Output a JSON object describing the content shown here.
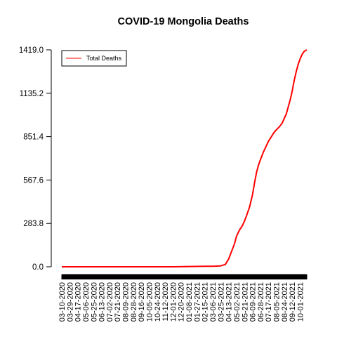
{
  "chart_data": {
    "type": "line",
    "title": "COVID-19 Mongolia Deaths",
    "xlabel": "",
    "ylabel": "",
    "ylim": [
      0,
      1419
    ],
    "yticks": [
      "0.0",
      "283.8",
      "567.6",
      "851.4",
      "1135.2",
      "1419.0"
    ],
    "ytick_values": [
      0,
      283.8,
      567.6,
      851.4,
      1135.2,
      1419.0
    ],
    "x_start": "2020-03-10",
    "x_end": "2021-10-17",
    "xtick_labels": [
      "03-10-2020",
      "03-29-2020",
      "04-17-2020",
      "05-06-2020",
      "05-25-2020",
      "06-13-2020",
      "07-02-2020",
      "07-21-2020",
      "08-09-2020",
      "08-28-2020",
      "09-16-2020",
      "10-05-2020",
      "10-24-2020",
      "11-12-2020",
      "12-01-2020",
      "12-20-2020",
      "01-08-2021",
      "01-27-2021",
      "02-15-2021",
      "03-06-2021",
      "03-25-2021",
      "04-13-2021",
      "05-02-2021",
      "05-21-2021",
      "06-09-2021",
      "06-28-2021",
      "07-17-2021",
      "08-05-2021",
      "08-24-2021",
      "09-12-2021",
      "10-01-2021"
    ],
    "legend": {
      "position": "top-left",
      "entries": [
        "Total Deaths"
      ]
    },
    "grid": false,
    "series": [
      {
        "name": "Total Deaths",
        "color": "#ff0000",
        "points": [
          [
            "2020-03-10",
            0
          ],
          [
            "2020-12-01",
            0
          ],
          [
            "2021-01-08",
            2
          ],
          [
            "2021-02-15",
            3
          ],
          [
            "2021-03-06",
            3
          ],
          [
            "2021-03-25",
            6
          ],
          [
            "2021-04-05",
            15
          ],
          [
            "2021-04-13",
            50
          ],
          [
            "2021-04-20",
            100
          ],
          [
            "2021-04-27",
            150
          ],
          [
            "2021-05-02",
            200
          ],
          [
            "2021-05-09",
            240
          ],
          [
            "2021-05-16",
            270
          ],
          [
            "2021-05-21",
            300
          ],
          [
            "2021-05-26",
            335
          ],
          [
            "2021-06-02",
            390
          ],
          [
            "2021-06-09",
            470
          ],
          [
            "2021-06-14",
            550
          ],
          [
            "2021-06-19",
            620
          ],
          [
            "2021-06-24",
            670
          ],
          [
            "2021-06-28",
            700
          ],
          [
            "2021-07-05",
            750
          ],
          [
            "2021-07-12",
            790
          ],
          [
            "2021-07-17",
            820
          ],
          [
            "2021-07-24",
            850
          ],
          [
            "2021-07-31",
            880
          ],
          [
            "2021-08-05",
            895
          ],
          [
            "2021-08-12",
            915
          ],
          [
            "2021-08-19",
            940
          ],
          [
            "2021-08-24",
            970
          ],
          [
            "2021-08-29",
            1000
          ],
          [
            "2021-09-03",
            1050
          ],
          [
            "2021-09-08",
            1100
          ],
          [
            "2021-09-12",
            1150
          ],
          [
            "2021-09-17",
            1220
          ],
          [
            "2021-09-22",
            1280
          ],
          [
            "2021-09-27",
            1330
          ],
          [
            "2021-10-01",
            1360
          ],
          [
            "2021-10-06",
            1390
          ],
          [
            "2021-10-11",
            1410
          ],
          [
            "2021-10-17",
            1419
          ]
        ]
      }
    ]
  }
}
